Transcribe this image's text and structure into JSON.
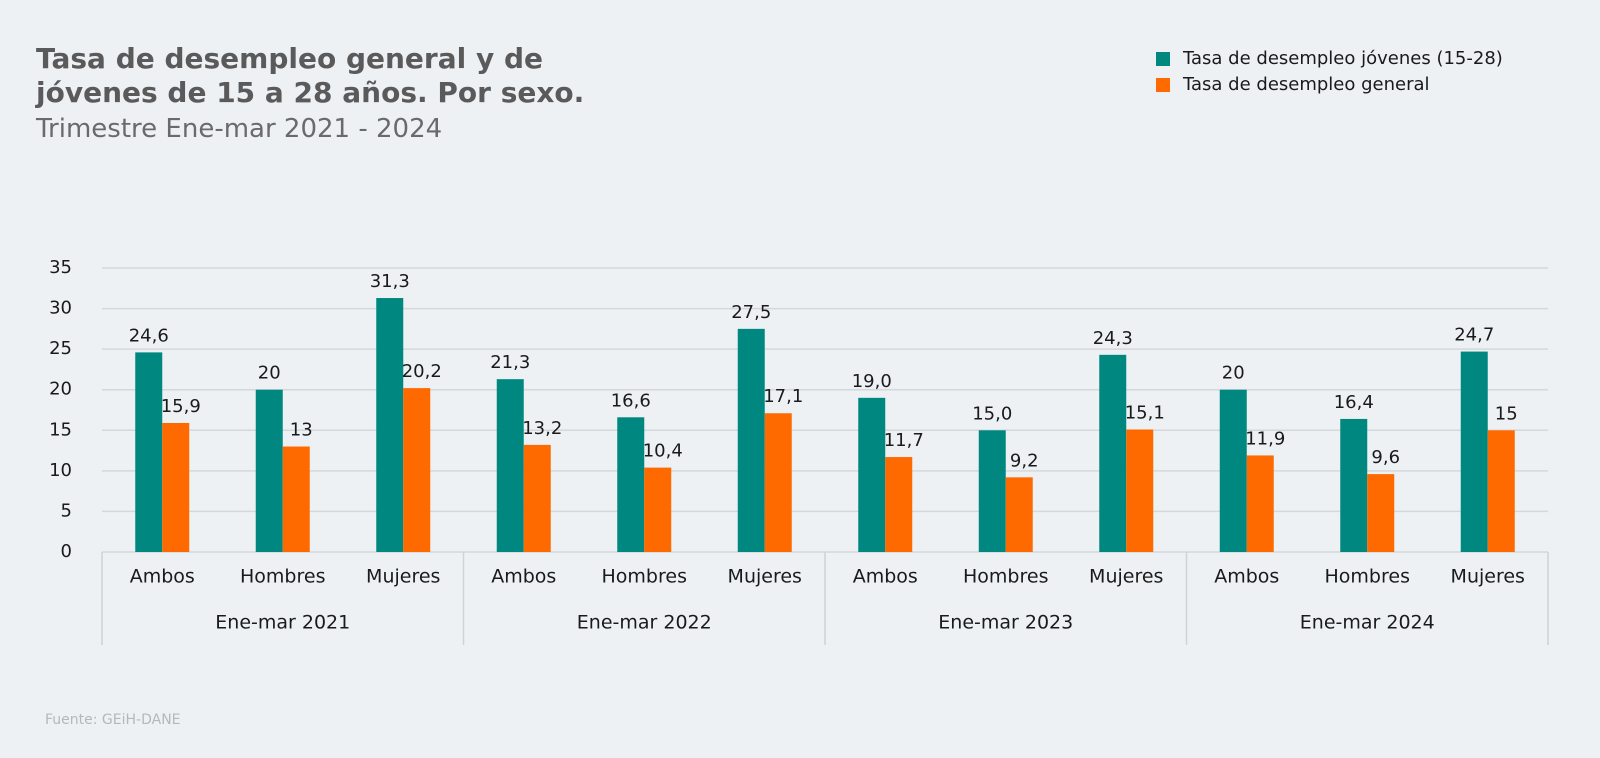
{
  "chart_data": {
    "type": "bar",
    "title": "Tasa de desempleo general y de jóvenes de 15 a 28 años. Por sexo.",
    "subtitle": "Trimestre Ene-mar 2021 - 2024",
    "source": "Fuente: GEiH-DANE",
    "categories": [
      "Ambos",
      "Hombres",
      "Mujeres",
      "Ambos",
      "Hombres",
      "Mujeres",
      "Ambos",
      "Hombres",
      "Mujeres",
      "Ambos",
      "Hombres",
      "Mujeres"
    ],
    "groups": [
      "Ene-mar 2021",
      "Ene-mar 2022",
      "Ene-mar 2023",
      "Ene-mar 2024"
    ],
    "series": [
      {
        "name": "Tasa de desempleo jóvenes (15-28)",
        "color": "#00877f",
        "values": [
          24.6,
          20,
          31.3,
          21.3,
          16.6,
          27.5,
          19.0,
          15.0,
          24.3,
          20,
          16.4,
          24.7
        ],
        "value_labels": [
          "24,6",
          "20",
          "31,3",
          "21,3",
          "16,6",
          "27,5",
          "19,0",
          "15,0",
          "24,3",
          "20",
          "16,4",
          "24,7"
        ]
      },
      {
        "name": "Tasa de desempleo general",
        "color": "#ff6a00",
        "values": [
          15.9,
          13,
          20.2,
          13.2,
          10.4,
          17.1,
          11.7,
          9.2,
          15.1,
          11.9,
          9.6,
          15
        ],
        "value_labels": [
          "15,9",
          "13",
          "20,2",
          "13,2",
          "10,4",
          "17,1",
          "11,7",
          "9,2",
          "15,1",
          "11,9",
          "9,6",
          "15"
        ]
      }
    ],
    "ylim": [
      0,
      35
    ],
    "yticks": [
      0,
      5,
      10,
      15,
      20,
      25,
      30,
      35
    ],
    "grid": true,
    "legend": "top-right"
  }
}
